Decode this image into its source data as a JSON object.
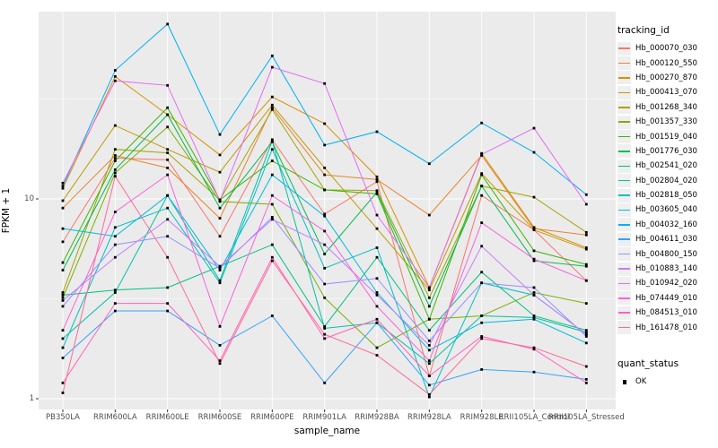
{
  "chart_data": {
    "type": "line",
    "title": "",
    "xlabel": "sample_name",
    "ylabel": "FPKM + 1",
    "y_scale": "log10",
    "y_ticks": [
      1,
      10
    ],
    "y_minor_gridlines": [
      3.162,
      31.623
    ],
    "ylim": [
      1,
      85
    ],
    "grid": true,
    "panel_bg": "#ebebeb",
    "grid_color": "#ffffff",
    "point_color": "#000000",
    "point_shape": "square",
    "legend_position": "right",
    "categories": [
      "PB350LA",
      "RRIM600LA",
      "RRIM600LE",
      "RRIM600SE",
      "RRIM600PE",
      "RRIM901LA",
      "RRIM928BA",
      "RRIM928LA",
      "RRIM928LE",
      "RRII105LA_Control",
      "RRII105LA_Stressed"
    ],
    "series": [
      {
        "name": "Hb_000070_030",
        "color": "#F8766D",
        "values": [
          6.1,
          16.0,
          15.7,
          6.5,
          19.8,
          8.4,
          12.2,
          1.3,
          10.4,
          7.0,
          3.9
        ]
      },
      {
        "name": "Hb_000120_550",
        "color": "#EA8331",
        "values": [
          9.0,
          16.5,
          14.3,
          8.0,
          28.6,
          13.2,
          12.5,
          8.3,
          16.5,
          7.1,
          6.6
        ]
      },
      {
        "name": "Hb_000270_870",
        "color": "#D89000",
        "values": [
          11.3,
          41.0,
          26.4,
          16.6,
          32.4,
          23.8,
          12.9,
          3.6,
          16.9,
          7.2,
          5.7
        ]
      },
      {
        "name": "Hb_000413_070",
        "color": "#C09B00",
        "values": [
          9.8,
          23.3,
          17.7,
          13.6,
          29.5,
          14.3,
          7.1,
          3.5,
          13.4,
          7.0,
          5.6
        ]
      },
      {
        "name": "Hb_001268_340",
        "color": "#A3A500",
        "values": [
          3.4,
          17.7,
          17.0,
          9.9,
          28.0,
          11.1,
          11.0,
          3.2,
          11.6,
          10.2,
          6.8
        ]
      },
      {
        "name": "Hb_001357_330",
        "color": "#7CAE00",
        "values": [
          3.2,
          13.5,
          22.9,
          9.7,
          9.4,
          3.2,
          1.8,
          2.5,
          2.6,
          3.4,
          3.0
        ]
      },
      {
        "name": "Hb_001519_040",
        "color": "#39B600",
        "values": [
          4.8,
          15.5,
          28.6,
          9.9,
          15.5,
          11.1,
          10.6,
          2.5,
          13.2,
          5.5,
          4.7
        ]
      },
      {
        "name": "Hb_001776_030",
        "color": "#00BB4E",
        "values": [
          4.4,
          14.0,
          26.4,
          9.0,
          19.3,
          5.3,
          10.8,
          2.9,
          11.6,
          4.9,
          4.6
        ]
      },
      {
        "name": "Hb_002541_020",
        "color": "#00BF7D",
        "values": [
          3.3,
          3.5,
          3.6,
          4.6,
          5.9,
          2.3,
          5.1,
          2.2,
          4.3,
          2.6,
          2.2
        ]
      },
      {
        "name": "Hb_002804_020",
        "color": "#00C1A3",
        "values": [
          2.0,
          3.4,
          10.4,
          3.9,
          19.5,
          2.25,
          2.4,
          1.5,
          2.6,
          2.55,
          2.15
        ]
      },
      {
        "name": "Hb_002818_050",
        "color": "#00BFC4",
        "values": [
          1.8,
          7.2,
          9.0,
          3.8,
          17.7,
          4.5,
          5.7,
          1.02,
          3.8,
          3.3,
          2.1
        ]
      },
      {
        "name": "Hb_003605_040",
        "color": "#00BAE0",
        "values": [
          7.1,
          6.5,
          10.4,
          4.4,
          13.2,
          8.2,
          3.4,
          1.75,
          2.4,
          2.5,
          1.9
        ]
      },
      {
        "name": "Hb_004032_160",
        "color": "#00B0F6",
        "values": [
          11.6,
          44.0,
          75.0,
          21.0,
          52.0,
          18.6,
          21.7,
          15.0,
          24.0,
          17.1,
          10.5
        ]
      },
      {
        "name": "Hb_004611_030",
        "color": "#35A2FF",
        "values": [
          1.6,
          2.75,
          2.75,
          1.85,
          2.6,
          1.2,
          2.4,
          1.17,
          1.4,
          1.36,
          1.25
        ]
      },
      {
        "name": "Hb_004800_150",
        "color": "#9590FF",
        "values": [
          2.9,
          5.9,
          6.5,
          4.5,
          8.1,
          3.75,
          4.0,
          1.95,
          3.8,
          3.6,
          2.05
        ]
      },
      {
        "name": "Hb_010883_140",
        "color": "#C77CFF",
        "values": [
          3.1,
          5.1,
          7.9,
          4.6,
          7.9,
          5.9,
          3.3,
          1.85,
          5.8,
          3.3,
          2.1
        ]
      },
      {
        "name": "Hb_010942_020",
        "color": "#E76BF3",
        "values": [
          12.0,
          39.0,
          37.0,
          9.8,
          45.6,
          37.8,
          8.3,
          3.6,
          16.7,
          22.6,
          9.4
        ]
      },
      {
        "name": "Hb_074449_010",
        "color": "#FA62DB",
        "values": [
          2.2,
          8.6,
          13.2,
          2.3,
          10.4,
          6.9,
          2.9,
          1.55,
          7.6,
          5.0,
          3.9
        ]
      },
      {
        "name": "Hb_084513_010",
        "color": "#FF62BC",
        "values": [
          1.2,
          3.0,
          3.0,
          1.55,
          5.1,
          2.0,
          2.5,
          1.3,
          2.05,
          1.77,
          1.2
        ]
      },
      {
        "name": "Hb_161478_010",
        "color": "#FF6A98",
        "values": [
          1.07,
          13.0,
          5.1,
          1.5,
          4.9,
          2.1,
          1.65,
          1.05,
          2.0,
          1.8,
          1.45
        ]
      }
    ],
    "legend": {
      "color_title": "tracking_id",
      "shape_title": "quant_status",
      "shape_items": [
        {
          "label": "OK"
        }
      ]
    }
  }
}
